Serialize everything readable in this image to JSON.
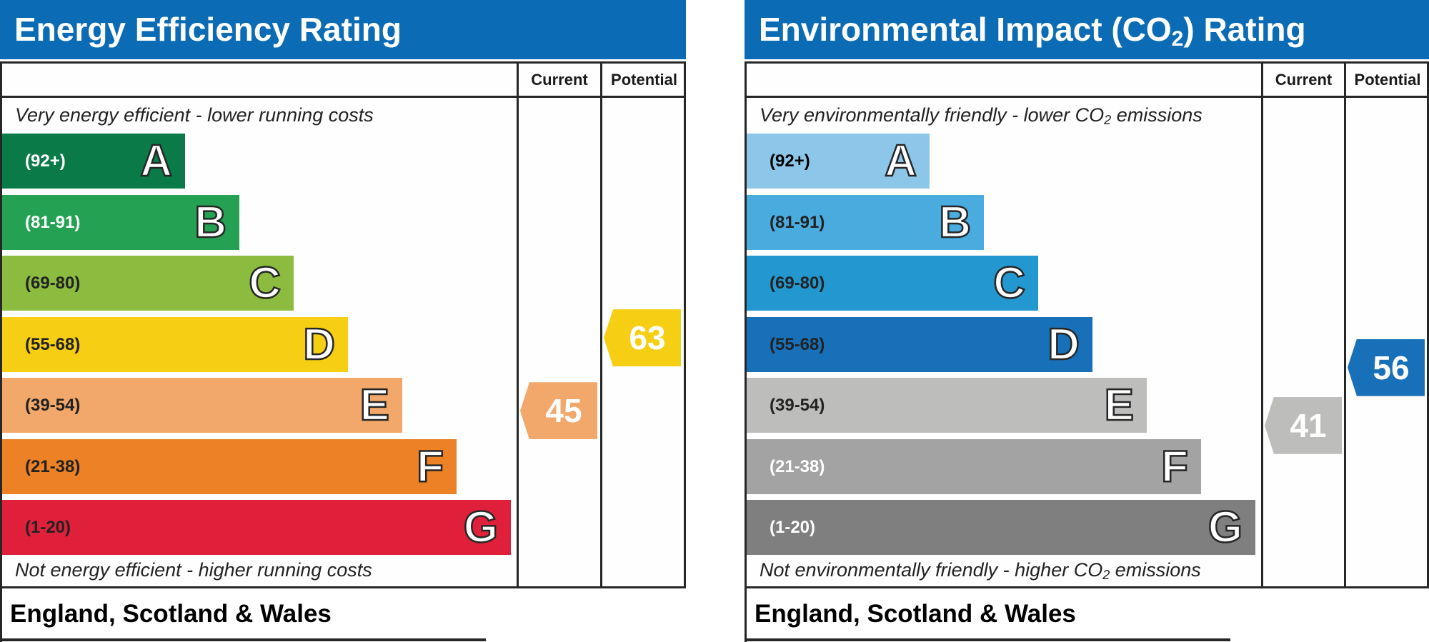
{
  "chart_data": [
    {
      "type": "bar",
      "title": "Energy Efficiency Rating",
      "columns": [
        "Current",
        "Potential"
      ],
      "top_caption": "Very energy efficient - lower running costs",
      "bottom_caption": "Not energy efficient - higher running costs",
      "bands": [
        {
          "letter": "A",
          "range": "(92+)",
          "color": "#0a7a48",
          "text_color": "#ffffff"
        },
        {
          "letter": "B",
          "range": "(81-91)",
          "color": "#24a152",
          "text_color": "#ffffff"
        },
        {
          "letter": "C",
          "range": "(69-80)",
          "color": "#8cbc3f",
          "text_color": "#222222"
        },
        {
          "letter": "D",
          "range": "(55-68)",
          "color": "#f6cf14",
          "text_color": "#222222"
        },
        {
          "letter": "E",
          "range": "(39-54)",
          "color": "#f2a86a",
          "text_color": "#222222"
        },
        {
          "letter": "F",
          "range": "(21-38)",
          "color": "#ec8126",
          "text_color": "#222222"
        },
        {
          "letter": "G",
          "range": "(1-20)",
          "color": "#e0203b",
          "text_color": "#222222"
        }
      ],
      "current": {
        "value": 45,
        "color": "#f2a86a"
      },
      "potential": {
        "value": 63,
        "color": "#f6cf14"
      },
      "footer": "England, Scotland & Wales"
    },
    {
      "type": "bar",
      "title": "Environmental Impact (CO2) Rating",
      "title_parts": [
        "Environmental Impact (CO",
        "2",
        ") Rating"
      ],
      "columns": [
        "Current",
        "Potential"
      ],
      "top_caption": "Very environmentally friendly - lower CO2 emissions",
      "top_caption_parts": [
        "Very environmentally friendly - lower CO",
        "2",
        " emissions"
      ],
      "bottom_caption": "Not environmentally friendly - higher CO2 emissions",
      "bottom_caption_parts": [
        "Not environmentally friendly - higher CO",
        "2",
        " emissions"
      ],
      "bands": [
        {
          "letter": "A",
          "range": "(92+)",
          "color": "#8cc7ea",
          "text_color": "#000000"
        },
        {
          "letter": "B",
          "range": "(81-91)",
          "color": "#4aabdf",
          "text_color": "#222222"
        },
        {
          "letter": "C",
          "range": "(69-80)",
          "color": "#2398d0",
          "text_color": "#222222"
        },
        {
          "letter": "D",
          "range": "(55-68)",
          "color": "#1870b9",
          "text_color": "#222222"
        },
        {
          "letter": "E",
          "range": "(39-54)",
          "color": "#bdbdbb",
          "text_color": "#222222"
        },
        {
          "letter": "F",
          "range": "(21-38)",
          "color": "#a3a3a3",
          "text_color": "#ffffff"
        },
        {
          "letter": "G",
          "range": "(1-20)",
          "color": "#7f7f7f",
          "text_color": "#ffffff"
        }
      ],
      "current": {
        "value": 41,
        "color": "#bdbdbb"
      },
      "potential": {
        "value": 56,
        "color": "#1870b9"
      },
      "footer": "England, Scotland & Wales"
    }
  ]
}
